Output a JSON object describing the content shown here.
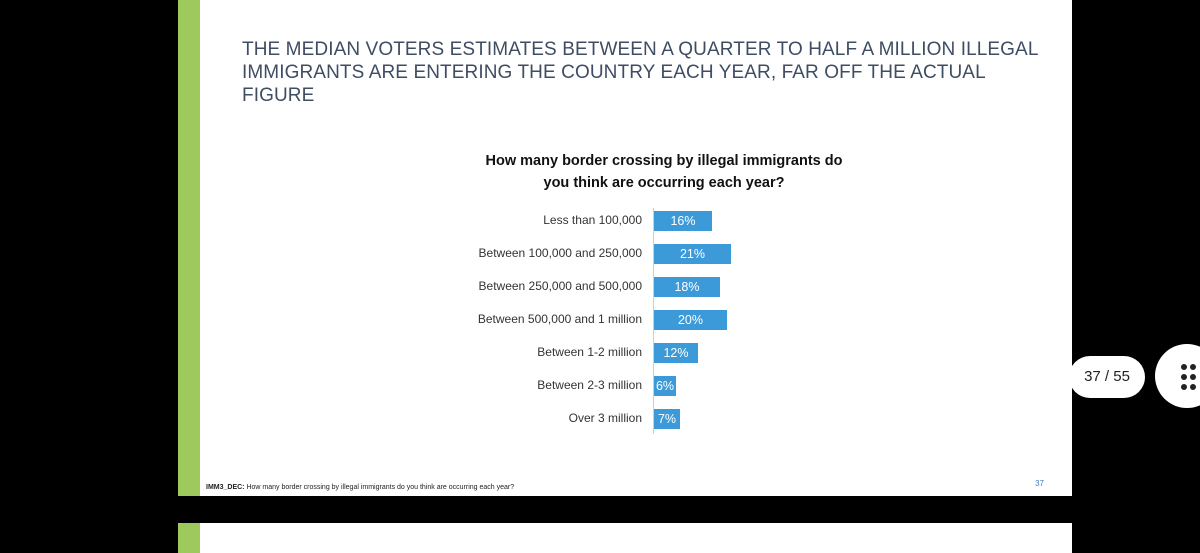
{
  "slide": {
    "title": "THE MEDIAN VOTERS ESTIMATES BETWEEN A QUARTER TO HALF A MILLION ILLEGAL IMMIGRANTS ARE ENTERING THE COUNTRY EACH YEAR, FAR OFF THE ACTUAL FIGURE",
    "footnote_code": "IMM3_DEC:",
    "footnote_text": " How many border crossing by illegal immigrants do you think are occurring each year?",
    "slide_number": "37"
  },
  "chart_data": {
    "type": "bar",
    "orientation": "horizontal",
    "title": "How many border crossing by illegal immigrants do you think are occurring each year?",
    "categories": [
      "Less than 100,000",
      "Between 100,000 and 250,000",
      "Between 250,000 and 500,000",
      "Between 500,000 and 1 million",
      "Between 1-2 million",
      "Between 2-3 million",
      "Over 3 million"
    ],
    "values": [
      16,
      21,
      18,
      20,
      12,
      6,
      7
    ],
    "labels": [
      "16%",
      "21%",
      "18%",
      "20%",
      "12%",
      "6%",
      "7%"
    ],
    "unit": "%",
    "xlim": [
      0,
      100
    ]
  },
  "viewer": {
    "page_indicator": "37 / 55",
    "menu_icon": "more-dots-icon"
  },
  "colors": {
    "bar": "#3d9ad8",
    "accent_green": "#9dc95d",
    "title_text": "#3f4d63"
  }
}
